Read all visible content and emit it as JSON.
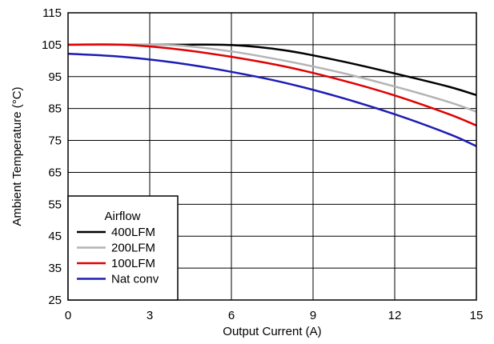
{
  "chart_data": {
    "type": "line",
    "xlabel": "Output Current (A)",
    "ylabel": "Ambient Temperature (°C)",
    "xlim": [
      0,
      15
    ],
    "ylim": [
      25,
      115
    ],
    "xticks": [
      "0",
      "3",
      "6",
      "9",
      "12",
      "15"
    ],
    "yticks": [
      "25",
      "35",
      "45",
      "55",
      "65",
      "75",
      "85",
      "95",
      "105",
      "115"
    ],
    "grid": true,
    "legend": {
      "title": "Airflow",
      "placement": "bottom-left"
    },
    "series": [
      {
        "name": "400LFM",
        "color": "#000000",
        "x": [
          0,
          2,
          4,
          6,
          8,
          10,
          12,
          14,
          15
        ],
        "y": [
          105,
          105,
          105,
          104.9,
          103.2,
          99.9,
          96.0,
          91.8,
          89.2
        ]
      },
      {
        "name": "200LFM",
        "color": "#b4b4b4",
        "x": [
          0,
          2,
          4,
          6,
          8,
          10,
          12,
          14,
          15
        ],
        "y": [
          105,
          105,
          104.8,
          102.9,
          99.9,
          96.3,
          91.9,
          87.0,
          84.0
        ]
      },
      {
        "name": "100LFM",
        "color": "#e00000",
        "x": [
          0,
          2,
          4,
          6,
          8,
          10,
          12,
          14,
          15
        ],
        "y": [
          105,
          105,
          103.6,
          101.2,
          98.1,
          94.0,
          89.1,
          83.2,
          79.7
        ]
      },
      {
        "name": "Nat conv",
        "color": "#1c1cb4",
        "x": [
          0,
          2,
          4,
          6,
          8,
          10,
          12,
          14,
          15
        ],
        "y": [
          102.2,
          101.2,
          99.3,
          96.5,
          93.0,
          88.5,
          83.2,
          77.0,
          73.2
        ]
      }
    ]
  }
}
